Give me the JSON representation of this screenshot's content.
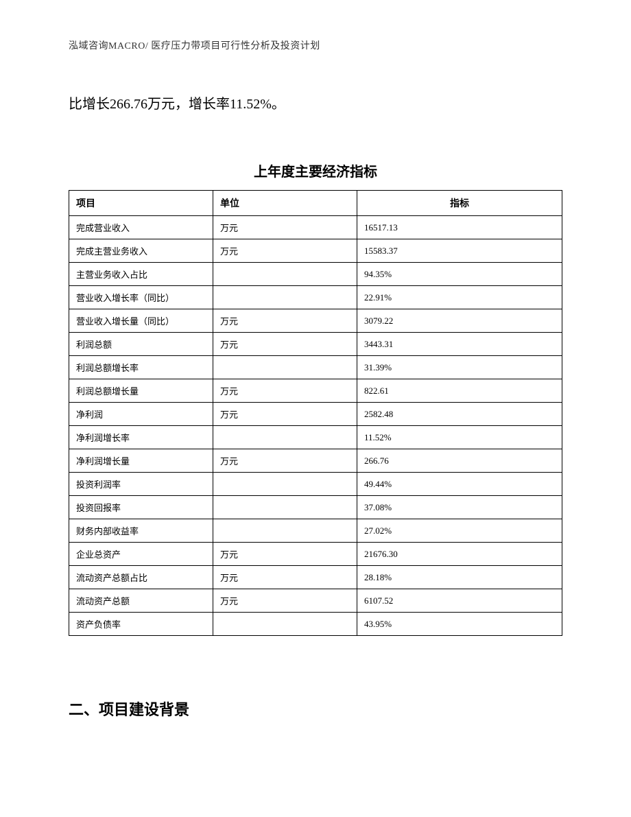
{
  "header": "泓域咨询MACRO/ 医疗压力带项目可行性分析及投资计划",
  "bodyText": "比增长266.76万元，增长率11.52%。",
  "tableTitle": "上年度主要经济指标",
  "table": {
    "columns": [
      "项目",
      "单位",
      "指标"
    ],
    "rows": [
      {
        "item": "完成营业收入",
        "unit": "万元",
        "value": "16517.13"
      },
      {
        "item": "完成主营业务收入",
        "unit": "万元",
        "value": "15583.37"
      },
      {
        "item": "主营业务收入占比",
        "unit": "",
        "value": "94.35%"
      },
      {
        "item": "营业收入增长率（同比）",
        "unit": "",
        "value": "22.91%"
      },
      {
        "item": "营业收入增长量（同比）",
        "unit": "万元",
        "value": "3079.22"
      },
      {
        "item": "利润总额",
        "unit": "万元",
        "value": "3443.31"
      },
      {
        "item": "利润总额增长率",
        "unit": "",
        "value": "31.39%"
      },
      {
        "item": "利润总额增长量",
        "unit": "万元",
        "value": "822.61"
      },
      {
        "item": "净利润",
        "unit": "万元",
        "value": "2582.48"
      },
      {
        "item": "净利润增长率",
        "unit": "",
        "value": "11.52%"
      },
      {
        "item": "净利润增长量",
        "unit": "万元",
        "value": "266.76"
      },
      {
        "item": "投资利润率",
        "unit": "",
        "value": "49.44%"
      },
      {
        "item": "投资回报率",
        "unit": "",
        "value": "37.08%"
      },
      {
        "item": "财务内部收益率",
        "unit": "",
        "value": "27.02%"
      },
      {
        "item": "企业总资产",
        "unit": "万元",
        "value": "21676.30"
      },
      {
        "item": "流动资产总额占比",
        "unit": "万元",
        "value": "28.18%"
      },
      {
        "item": "流动资产总额",
        "unit": "万元",
        "value": "6107.52"
      },
      {
        "item": "资产负债率",
        "unit": "",
        "value": "43.95%"
      }
    ]
  },
  "sectionHeading": "二、项目建设背景"
}
